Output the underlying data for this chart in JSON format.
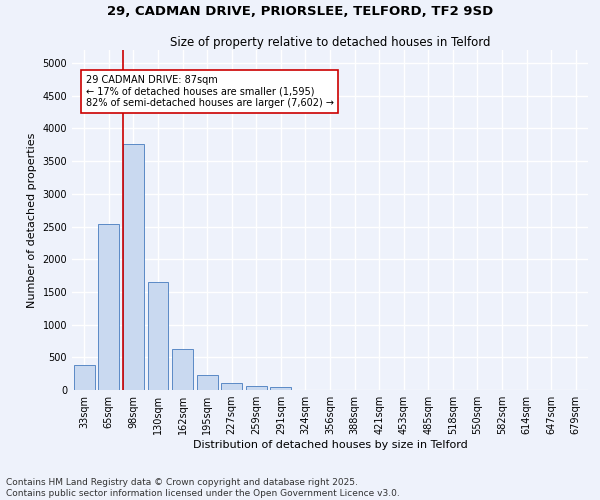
{
  "title_line1": "29, CADMAN DRIVE, PRIORSLEE, TELFORD, TF2 9SD",
  "title_line2": "Size of property relative to detached houses in Telford",
  "xlabel": "Distribution of detached houses by size in Telford",
  "ylabel": "Number of detached properties",
  "categories": [
    "33sqm",
    "65sqm",
    "98sqm",
    "130sqm",
    "162sqm",
    "195sqm",
    "227sqm",
    "259sqm",
    "291sqm",
    "324sqm",
    "356sqm",
    "388sqm",
    "421sqm",
    "453sqm",
    "485sqm",
    "518sqm",
    "550sqm",
    "582sqm",
    "614sqm",
    "647sqm",
    "679sqm"
  ],
  "values": [
    390,
    2540,
    3760,
    1650,
    620,
    230,
    100,
    60,
    40,
    0,
    0,
    0,
    0,
    0,
    0,
    0,
    0,
    0,
    0,
    0,
    0
  ],
  "bar_color": "#c9d9f0",
  "bar_edge_color": "#5a8ac6",
  "vline_color": "#cc0000",
  "annotation_text": "29 CADMAN DRIVE: 87sqm\n← 17% of detached houses are smaller (1,595)\n82% of semi-detached houses are larger (7,602) →",
  "annotation_box_color": "#ffffff",
  "annotation_box_edge": "#cc0000",
  "ylim": [
    0,
    5200
  ],
  "yticks": [
    0,
    500,
    1000,
    1500,
    2000,
    2500,
    3000,
    3500,
    4000,
    4500,
    5000
  ],
  "background_color": "#eef2fb",
  "grid_color": "#ffffff",
  "footer_text": "Contains HM Land Registry data © Crown copyright and database right 2025.\nContains public sector information licensed under the Open Government Licence v3.0.",
  "title_fontsize": 9.5,
  "subtitle_fontsize": 8.5,
  "axis_label_fontsize": 8,
  "tick_fontsize": 7,
  "annotation_fontsize": 7,
  "footer_fontsize": 6.5
}
